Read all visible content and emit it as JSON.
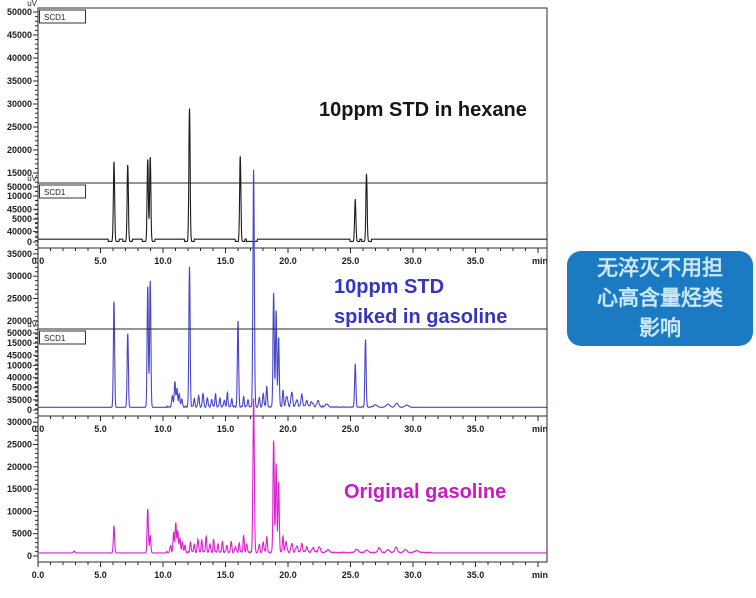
{
  "annotation": {
    "lines": [
      "无淬灭不用担",
      "心高含量烃类",
      "影响"
    ],
    "bg_color": "#1b7ac2",
    "text_color": "#cbe7f6"
  },
  "axis": {
    "y_unit": "uV",
    "x_unit": "min",
    "detector": "SCD1",
    "y_ticks": [
      "50000",
      "45000",
      "40000",
      "35000",
      "30000",
      "25000",
      "20000",
      "15000",
      "10000",
      "5000",
      "0"
    ],
    "x_ticks": [
      "0.0",
      "5.0",
      "10.0",
      "15.0",
      "20.0",
      "25.0",
      "30.0",
      "35.0"
    ],
    "x_range_min": [
      0,
      40.7
    ],
    "y_range_uV": [
      0,
      50000
    ]
  },
  "chart_data": [
    {
      "id": "std-in-hexane",
      "type": "line",
      "title": "10ppm STD in hexane",
      "title_color": "#161616",
      "color": "#1c1c1c",
      "baseline_uV": 600,
      "peak_fields": [
        "time_min",
        "apex_uV",
        "sigma_min_optional"
      ],
      "peaks": [
        [
          6.08,
          17400
        ],
        [
          7.18,
          16700
        ],
        [
          8.78,
          17900
        ],
        [
          8.98,
          18400
        ],
        [
          12.12,
          28900
        ],
        [
          16.18,
          18600
        ],
        [
          25.38,
          9200
        ],
        [
          26.28,
          14700
        ]
      ],
      "cut_windows_min": [
        [
          5.62,
          6.48
        ],
        [
          6.78,
          7.55
        ],
        [
          8.35,
          9.35
        ],
        [
          11.72,
          12.5
        ],
        [
          15.78,
          16.55
        ],
        [
          16.68,
          17.55
        ],
        [
          24.95,
          25.75
        ],
        [
          25.9,
          26.68
        ]
      ],
      "noise_regions": []
    },
    {
      "id": "std-spiked-in-gasoline",
      "type": "line",
      "title": "10ppm STD spiked in gasoline",
      "title_lines": [
        "10ppm STD",
        "spiked in gasoline"
      ],
      "title_color": "#3734c4",
      "color": "#4746c6",
      "baseline_uV": 600,
      "peak_fields": [
        "time_min",
        "apex_uV",
        "sigma_min_optional"
      ],
      "peaks": [
        [
          6.08,
          23800
        ],
        [
          7.18,
          16600
        ],
        [
          8.78,
          27200
        ],
        [
          8.98,
          28500
        ],
        [
          10.75,
          2600
        ],
        [
          10.95,
          5800
        ],
        [
          11.12,
          4300
        ],
        [
          11.3,
          3000
        ],
        [
          11.5,
          1900
        ],
        [
          12.12,
          31400
        ],
        [
          12.5,
          1800
        ],
        [
          12.85,
          2600
        ],
        [
          13.2,
          3100
        ],
        [
          13.55,
          2100
        ],
        [
          13.9,
          1700
        ],
        [
          14.2,
          2700
        ],
        [
          14.55,
          1900
        ],
        [
          14.9,
          1500
        ],
        [
          15.15,
          3100
        ],
        [
          15.5,
          1700
        ],
        [
          16.0,
          19400
        ],
        [
          16.45,
          2100
        ],
        [
          16.8,
          1600
        ],
        [
          17.25,
          53200,
          0.055
        ],
        [
          17.7,
          2100
        ],
        [
          18.02,
          3100
        ],
        [
          18.3,
          4600
        ],
        [
          18.85,
          25500
        ],
        [
          19.05,
          21500
        ],
        [
          19.25,
          15600
        ],
        [
          19.6,
          3600
        ],
        [
          19.9,
          2400,
          0.08
        ],
        [
          20.3,
          3300,
          0.07
        ],
        [
          20.7,
          1600,
          0.08
        ],
        [
          21.1,
          2700,
          0.07
        ],
        [
          21.5,
          1300,
          0.08
        ],
        [
          21.9,
          1100,
          0.1
        ],
        [
          22.4,
          1400,
          0.09
        ],
        [
          23.1,
          700,
          0.12
        ],
        [
          25.38,
          9700
        ],
        [
          26.2,
          15200
        ],
        [
          27.0,
          500,
          0.15
        ],
        [
          28.0,
          700,
          0.15
        ],
        [
          28.7,
          900,
          0.12
        ],
        [
          29.5,
          500,
          0.15
        ]
      ],
      "cut_windows_min": [],
      "noise_regions": [
        [
          10.3,
          22.8,
          320
        ],
        [
          22.8,
          27.0,
          150
        ]
      ]
    },
    {
      "id": "original-gasoline",
      "type": "line",
      "title": "Original gasoline",
      "title_color": "#c81bc4",
      "color": "#dc1fd0",
      "baseline_uV": 700,
      "peak_fields": [
        "time_min",
        "apex_uV",
        "sigma_min_optional"
      ],
      "peaks": [
        [
          2.9,
          400,
          0.06
        ],
        [
          6.08,
          6000
        ],
        [
          8.78,
          9900
        ],
        [
          8.98,
          3900
        ],
        [
          10.6,
          1600
        ],
        [
          10.85,
          4300
        ],
        [
          11.02,
          6500
        ],
        [
          11.18,
          4800
        ],
        [
          11.35,
          3300
        ],
        [
          11.55,
          2300
        ],
        [
          11.75,
          1500
        ],
        [
          12.2,
          2300
        ],
        [
          12.5,
          1700
        ],
        [
          12.8,
          3000
        ],
        [
          13.1,
          2600
        ],
        [
          13.45,
          3400
        ],
        [
          13.75,
          2000
        ],
        [
          14.05,
          2700
        ],
        [
          14.4,
          1800
        ],
        [
          14.75,
          2200
        ],
        [
          15.1,
          1600
        ],
        [
          15.45,
          2500
        ],
        [
          15.8,
          1400
        ],
        [
          16.1,
          2100
        ],
        [
          16.45,
          3500
        ],
        [
          16.7,
          1900
        ],
        [
          17.25,
          34500,
          0.055
        ],
        [
          17.7,
          1800
        ],
        [
          18.02,
          2400
        ],
        [
          18.3,
          3500
        ],
        [
          18.85,
          25000
        ],
        [
          19.05,
          19800
        ],
        [
          19.25,
          15800
        ],
        [
          19.6,
          3400
        ],
        [
          19.85,
          2300,
          0.07
        ],
        [
          20.3,
          2000,
          0.07
        ],
        [
          20.7,
          1400,
          0.08
        ],
        [
          21.1,
          1800,
          0.07
        ],
        [
          21.5,
          1100,
          0.08
        ],
        [
          22.0,
          950,
          0.1
        ],
        [
          22.5,
          1300,
          0.09
        ],
        [
          23.2,
          650,
          0.12
        ],
        [
          25.5,
          750,
          0.12
        ],
        [
          26.3,
          550,
          0.12
        ],
        [
          27.3,
          1150,
          0.1
        ],
        [
          28.0,
          650,
          0.12
        ],
        [
          28.65,
          1250,
          0.1
        ],
        [
          29.4,
          650,
          0.12
        ],
        [
          30.3,
          450,
          0.15
        ]
      ],
      "cut_windows_min": [],
      "noise_regions": [
        [
          10.2,
          22.5,
          380
        ],
        [
          22.5,
          31.5,
          200
        ]
      ]
    }
  ]
}
